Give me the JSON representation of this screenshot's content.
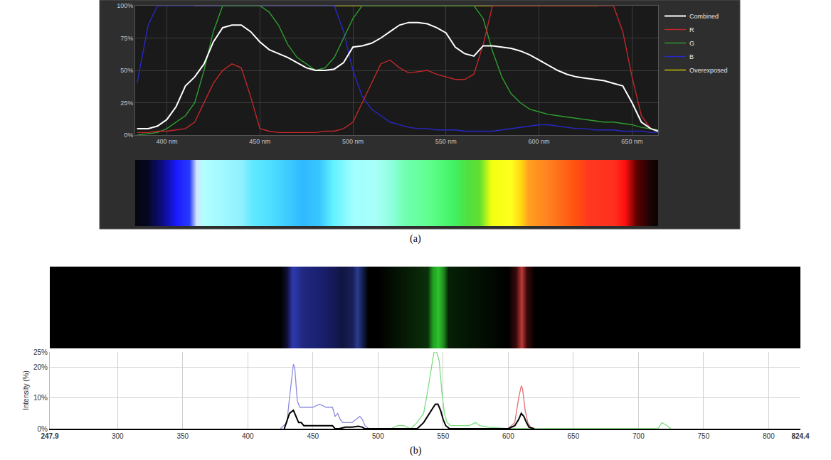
{
  "chart_data": [
    {
      "panel": "(a)",
      "type": "line",
      "x": [
        384,
        390,
        395,
        400,
        405,
        410,
        415,
        420,
        425,
        430,
        435,
        440,
        445,
        450,
        455,
        460,
        465,
        470,
        475,
        480,
        485,
        490,
        495,
        500,
        505,
        510,
        515,
        520,
        525,
        530,
        535,
        540,
        545,
        550,
        555,
        560,
        565,
        570,
        575,
        580,
        585,
        590,
        595,
        600,
        605,
        610,
        615,
        620,
        625,
        630,
        635,
        640,
        645,
        650,
        655,
        660,
        664
      ],
      "series": [
        {
          "name": "Combined",
          "color": "#ffffff",
          "values": [
            5,
            5,
            7,
            12,
            22,
            38,
            45,
            55,
            72,
            83,
            85,
            85,
            80,
            72,
            66,
            63,
            60,
            56,
            52,
            50,
            50,
            51,
            56,
            68,
            69,
            71,
            75,
            80,
            85,
            87,
            87,
            86,
            83,
            79,
            68,
            63,
            61,
            69,
            69,
            68,
            67,
            65,
            62,
            58,
            54,
            50,
            47,
            45,
            44,
            43,
            42,
            40,
            38,
            25,
            10,
            5,
            3
          ]
        },
        {
          "name": "R",
          "color": "#c0282a",
          "values": [
            2,
            2,
            3,
            3,
            4,
            5,
            10,
            25,
            40,
            50,
            55,
            52,
            30,
            5,
            3,
            2,
            2,
            2,
            2,
            2,
            3,
            3,
            5,
            10,
            25,
            40,
            55,
            58,
            52,
            48,
            49,
            50,
            47,
            45,
            43,
            43,
            47,
            70,
            100,
            100,
            100,
            100,
            100,
            100,
            100,
            100,
            100,
            100,
            100,
            100,
            100,
            100,
            80,
            45,
            15,
            5,
            3
          ]
        },
        {
          "name": "G",
          "color": "#2e9e2e",
          "values": [
            0,
            1,
            2,
            5,
            10,
            15,
            25,
            50,
            80,
            100,
            100,
            100,
            100,
            100,
            95,
            85,
            70,
            60,
            55,
            50,
            52,
            60,
            75,
            90,
            100,
            100,
            100,
            100,
            100,
            100,
            100,
            100,
            100,
            100,
            100,
            100,
            100,
            90,
            65,
            45,
            32,
            25,
            20,
            18,
            16,
            15,
            14,
            13,
            12,
            11,
            10,
            10,
            9,
            8,
            6,
            5,
            4
          ]
        },
        {
          "name": "B",
          "color": "#2828c8",
          "values": [
            40,
            85,
            100,
            100,
            100,
            100,
            100,
            100,
            100,
            100,
            100,
            100,
            100,
            100,
            100,
            100,
            100,
            100,
            100,
            100,
            100,
            100,
            80,
            50,
            30,
            20,
            15,
            10,
            8,
            6,
            5,
            5,
            4,
            4,
            4,
            3,
            3,
            3,
            3,
            4,
            5,
            6,
            7,
            8,
            8,
            7,
            6,
            5,
            5,
            4,
            4,
            4,
            3,
            3,
            3,
            2,
            2
          ]
        },
        {
          "name": "Overexposed",
          "color": "#d8c800",
          "x": [
            415,
            632
          ],
          "values": [
            100,
            100
          ]
        }
      ],
      "xlim": [
        383,
        664
      ],
      "xticks": [
        {
          "value": 400,
          "label": "400 nm"
        },
        {
          "value": 450,
          "label": "450 nm"
        },
        {
          "value": 500,
          "label": "500 nm"
        },
        {
          "value": 550,
          "label": "550 nm"
        },
        {
          "value": 600,
          "label": "600 nm"
        },
        {
          "value": 650,
          "label": "650 nm"
        }
      ],
      "ylim": [
        0,
        100
      ],
      "yticks": [
        {
          "value": 0,
          "label": "0%"
        },
        {
          "value": 25,
          "label": "25%"
        },
        {
          "value": 50,
          "label": "50%"
        },
        {
          "value": 75,
          "label": "75%"
        },
        {
          "value": 100,
          "label": "100%"
        }
      ],
      "grid": true,
      "legend": "right",
      "strip": {
        "x": [
          383,
          389,
          397,
          405,
          412,
          416,
          420,
          430,
          440,
          446,
          455,
          463,
          473,
          482,
          489,
          500,
          512,
          520,
          528,
          540,
          555,
          561,
          568,
          574,
          585,
          591,
          594,
          605,
          620,
          626,
          640,
          646,
          652,
          660,
          664
        ],
        "colors": [
          "#05060f",
          "#05081e",
          "#0c0c80",
          "#1a1aff",
          "#2a3cff",
          "#d0e8ff",
          "#b0ffff",
          "#a0f8ff",
          "#90f0ff",
          "#60e8ff",
          "#50e0ff",
          "#40d0ff",
          "#30b8ff",
          "#38c8ff",
          "#60f0ff",
          "#a0ffff",
          "#a8fff8",
          "#90ffe0",
          "#70ffb0",
          "#60ff90",
          "#40f060",
          "#50e040",
          "#60e030",
          "#f0ff10",
          "#ffff20",
          "#ffd010",
          "#ffa020",
          "#ff8020",
          "#ff5010",
          "#ff3820",
          "#ff3020",
          "#ff1010",
          "#600000",
          "#150505",
          "#100000"
        ]
      }
    },
    {
      "panel": "(b)",
      "type": "line",
      "y_label": "Intensity (%)",
      "series": [
        {
          "color": "#8c8ce0",
          "x": [
            425,
            430,
            432,
            434,
            435,
            436,
            437,
            438,
            440,
            445,
            450,
            455,
            460,
            465,
            467,
            469,
            471,
            473,
            480,
            483,
            486,
            488,
            490,
            493
          ],
          "values": [
            0,
            2,
            10,
            18,
            21,
            20,
            14,
            9,
            7,
            7,
            7,
            8,
            7,
            7,
            4,
            5,
            3,
            2,
            2,
            3,
            4,
            3,
            1,
            0
          ]
        },
        {
          "color": "#7ede7e",
          "x": [
            510,
            515,
            520,
            525,
            530,
            535,
            538,
            541,
            543,
            545,
            547,
            549,
            551,
            553,
            556,
            560,
            570,
            575,
            578,
            585,
            600,
            715,
            718,
            722,
            725
          ],
          "values": [
            0,
            1,
            1,
            0,
            2,
            5,
            12,
            20,
            25,
            25,
            22,
            12,
            5,
            2,
            1,
            1,
            1,
            2,
            1,
            0.5,
            0,
            0,
            2,
            1,
            0
          ]
        },
        {
          "color": "#e07070",
          "x": [
            600,
            605,
            608,
            610,
            611,
            613,
            615,
            618
          ],
          "values": [
            0,
            2,
            10,
            14,
            13,
            6,
            2,
            0
          ]
        },
        {
          "color": "#000000",
          "x": [
            428,
            432,
            435,
            437,
            439,
            441,
            443,
            450,
            460,
            465,
            467,
            470,
            475,
            480,
            485,
            488,
            490,
            530,
            535,
            538,
            541,
            544,
            546,
            548,
            550,
            552,
            555,
            600,
            605,
            608,
            610,
            612,
            614,
            616,
            620
          ],
          "values": [
            0,
            5,
            6,
            4,
            2,
            2,
            1,
            1,
            1,
            1,
            0,
            0,
            0.5,
            0.5,
            0.8,
            0.5,
            0,
            0,
            2,
            4,
            6,
            8,
            8,
            6,
            3,
            1,
            0,
            0,
            1,
            3,
            5,
            4,
            2,
            0.5,
            0
          ]
        }
      ],
      "xlim": [
        247.9,
        824.4
      ],
      "xticks": [
        247.9,
        300,
        350,
        400,
        450,
        500,
        550,
        600,
        650,
        700,
        750,
        800,
        824.4
      ],
      "ylim": [
        0,
        25
      ],
      "yticks": [
        {
          "value": 0,
          "label": "0%"
        },
        {
          "value": 10,
          "label": "10%"
        },
        {
          "value": 20,
          "label": "20%"
        },
        {
          "value": 25,
          "label": "25%"
        }
      ],
      "grid": true,
      "strip": {
        "x": [
          247.9,
          425,
          430,
          434,
          437,
          442,
          455,
          468,
          472,
          480,
          484,
          488,
          492,
          500,
          538,
          542,
          546,
          550,
          554,
          600,
          606,
          610,
          614,
          620,
          824.4
        ],
        "colors": [
          "#000000",
          "#000000",
          "#101038",
          "#3038b0",
          "#2a34a0",
          "#202880",
          "#1a2070",
          "#141850",
          "#101440",
          "#182058",
          "#2a3a90",
          "#142050",
          "#000000",
          "#000000",
          "#0a300a",
          "#20a020",
          "#30c030",
          "#1e8a1e",
          "#062006",
          "#000000",
          "#3a0a0a",
          "#c03838",
          "#3a0a0a",
          "#000000",
          "#000000"
        ]
      }
    }
  ]
}
